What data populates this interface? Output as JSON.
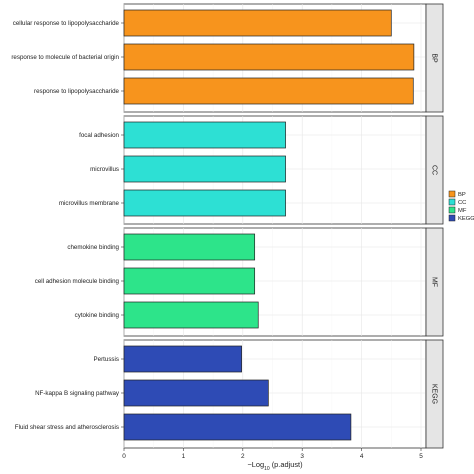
{
  "chart_data": {
    "type": "bar",
    "orientation": "horizontal",
    "xlabel": "−Log10 (p.adjust)",
    "xlabel_parts": [
      "−Log",
      "10",
      " (p.adjust)"
    ],
    "xlim": [
      0,
      5
    ],
    "xticks": [
      0,
      1,
      2,
      3,
      4,
      5
    ],
    "grid": true,
    "legend": {
      "placement": "right",
      "entries": [
        {
          "name": "BP",
          "color": "#f7941d"
        },
        {
          "name": "CC",
          "color": "#2de0d4"
        },
        {
          "name": "MF",
          "color": "#2de48a"
        },
        {
          "name": "KEGG",
          "color": "#2e4bb5"
        }
      ]
    },
    "panels": [
      {
        "strip": "BP",
        "color": "#f7941d",
        "categories": [
          "cellular response to lipopolysaccharide",
          "response to molecule of bacterial origin",
          "response to lipopolysaccharide"
        ],
        "values": [
          4.5,
          4.88,
          4.87
        ]
      },
      {
        "strip": "CC",
        "color": "#2de0d4",
        "categories": [
          "focal adhesion",
          "microvillus",
          "microvillus membrane"
        ],
        "values": [
          2.72,
          2.72,
          2.72
        ]
      },
      {
        "strip": "MF",
        "color": "#2de48a",
        "categories": [
          "chemokine binding",
          "cell adhesion molecule binding",
          "cytokine binding"
        ],
        "values": [
          2.2,
          2.2,
          2.26
        ]
      },
      {
        "strip": "KEGG",
        "color": "#2e4bb5",
        "categories": [
          "Pertussis",
          "NF-kappa B signaling pathway",
          "Fluid shear stress and atherosclerosis"
        ],
        "values": [
          1.98,
          2.43,
          3.82
        ]
      }
    ]
  }
}
